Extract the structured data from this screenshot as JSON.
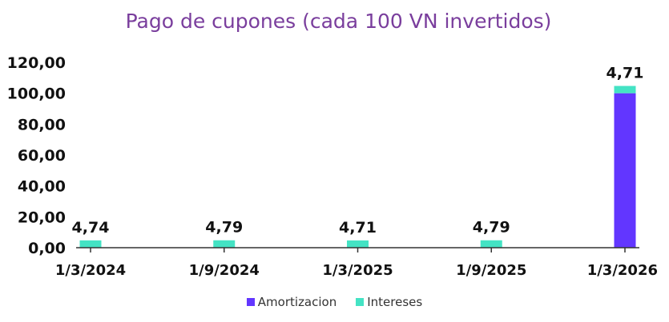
{
  "colors": {
    "amortizacion": "#6236ff",
    "intereses": "#44e3c4",
    "axis": "#333333",
    "title": "#7a3e9d"
  },
  "chart_data": {
    "type": "bar",
    "stacked": true,
    "title": "Pago de cupones (cada 100 VN invertidos)",
    "xlabel": "",
    "ylabel": "",
    "ylim": [
      0,
      120
    ],
    "yticks": [
      "0,00",
      "20,00",
      "40,00",
      "60,00",
      "80,00",
      "100,00",
      "120,00"
    ],
    "grid": false,
    "legend_position": "bottom",
    "categories": [
      "1/3/2024",
      "1/9/2024",
      "1/3/2025",
      "1/9/2025",
      "1/3/2026"
    ],
    "series": [
      {
        "name": "Amortizacion",
        "values": [
          0,
          0,
          0,
          0,
          100
        ],
        "color": "#6236ff"
      },
      {
        "name": "Intereses",
        "values": [
          4.74,
          4.79,
          4.71,
          4.79,
          4.71
        ],
        "color": "#44e3c4"
      }
    ],
    "data_labels": [
      "4,74",
      "4,79",
      "4,71",
      "4,79",
      "4,71"
    ]
  }
}
